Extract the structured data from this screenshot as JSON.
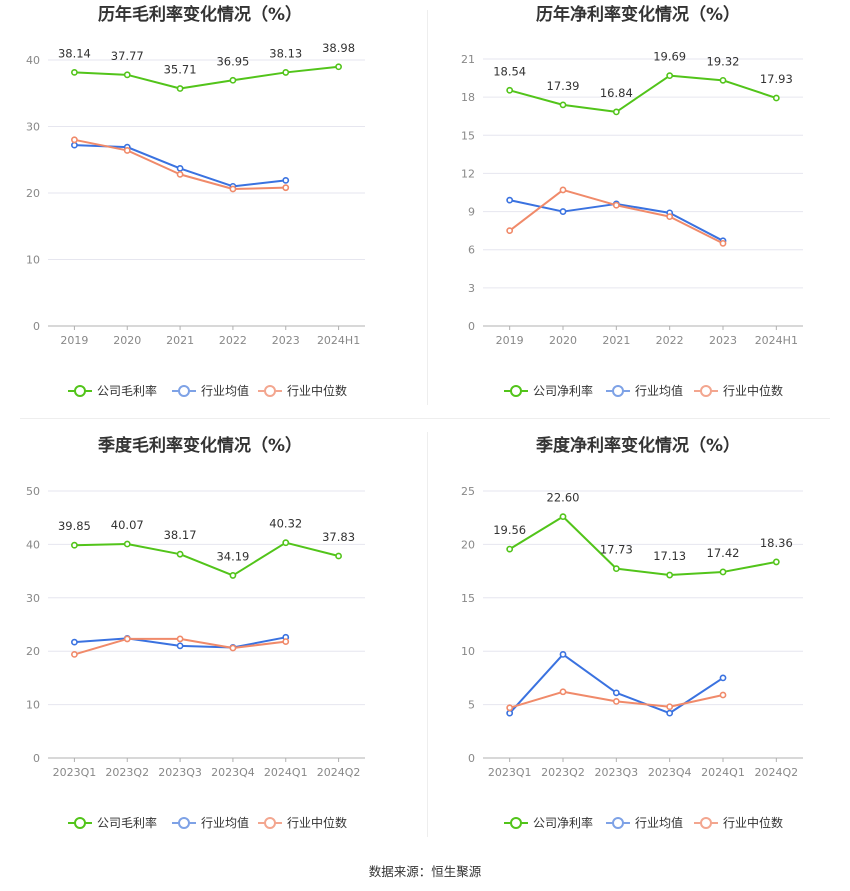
{
  "colors": {
    "company": "#52c41a",
    "industry_avg": "#3a72e0",
    "industry_median": "#f08a6a",
    "legend_avg": "#7ea2e6",
    "legend_median": "#f3a68f",
    "grid": "#e6e6ef",
    "axis": "#b0b0b0"
  },
  "footer": {
    "source": "数据来源：恒生聚源"
  },
  "chart_data": [
    {
      "type": "line",
      "title": "历年毛利率变化情况（%）",
      "categories": [
        "2019",
        "2020",
        "2021",
        "2022",
        "2023",
        "2024H1"
      ],
      "ylim": [
        0,
        40
      ],
      "yticks": [
        0,
        10,
        20,
        30,
        40
      ],
      "series": [
        {
          "name": "公司毛利率",
          "key": "company",
          "values": [
            38.14,
            37.77,
            35.71,
            36.95,
            38.13,
            38.98
          ],
          "labels": true
        },
        {
          "name": "行业均值",
          "key": "industry_avg",
          "values": [
            27.2,
            26.9,
            23.7,
            21.0,
            21.9,
            null
          ],
          "labels": false
        },
        {
          "name": "行业中位数",
          "key": "industry_median",
          "values": [
            28.0,
            26.4,
            22.8,
            20.6,
            20.8,
            null
          ],
          "labels": false
        }
      ]
    },
    {
      "type": "line",
      "title": "历年净利率变化情况（%）",
      "categories": [
        "2019",
        "2020",
        "2021",
        "2022",
        "2023",
        "2024H1"
      ],
      "ylim": [
        0,
        21
      ],
      "yticks": [
        0,
        3,
        6,
        9,
        12,
        15,
        18,
        21
      ],
      "series": [
        {
          "name": "公司净利率",
          "key": "company",
          "values": [
            18.54,
            17.39,
            16.84,
            19.69,
            19.32,
            17.93
          ],
          "labels": true
        },
        {
          "name": "行业均值",
          "key": "industry_avg",
          "values": [
            9.9,
            9.0,
            9.6,
            8.9,
            6.7,
            null
          ],
          "labels": false
        },
        {
          "name": "行业中位数",
          "key": "industry_median",
          "values": [
            7.5,
            10.7,
            9.5,
            8.6,
            6.5,
            null
          ],
          "labels": false
        }
      ]
    },
    {
      "type": "line",
      "title": "季度毛利率变化情况（%）",
      "categories": [
        "2023Q1",
        "2023Q2",
        "2023Q3",
        "2023Q4",
        "2024Q1",
        "2024Q2"
      ],
      "ylim": [
        0,
        50
      ],
      "yticks": [
        0,
        10,
        20,
        30,
        40,
        50
      ],
      "series": [
        {
          "name": "公司毛利率",
          "key": "company",
          "values": [
            39.85,
            40.07,
            38.17,
            34.19,
            40.32,
            37.83
          ],
          "labels": true
        },
        {
          "name": "行业均值",
          "key": "industry_avg",
          "values": [
            21.7,
            22.4,
            21.0,
            20.7,
            22.6,
            null
          ],
          "labels": false
        },
        {
          "name": "行业中位数",
          "key": "industry_median",
          "values": [
            19.4,
            22.3,
            22.3,
            20.6,
            21.8,
            null
          ],
          "labels": false
        }
      ]
    },
    {
      "type": "line",
      "title": "季度净利率变化情况（%）",
      "categories": [
        "2023Q1",
        "2023Q2",
        "2023Q3",
        "2023Q4",
        "2024Q1",
        "2024Q2"
      ],
      "ylim": [
        0,
        25
      ],
      "yticks": [
        0,
        5,
        10,
        15,
        20,
        25
      ],
      "series": [
        {
          "name": "公司净利率",
          "key": "company",
          "values": [
            19.56,
            22.6,
            17.73,
            17.13,
            17.42,
            18.36
          ],
          "labels": true
        },
        {
          "name": "行业均值",
          "key": "industry_avg",
          "values": [
            4.2,
            9.7,
            6.1,
            4.2,
            7.5,
            null
          ],
          "labels": false
        },
        {
          "name": "行业中位数",
          "key": "industry_median",
          "values": [
            4.7,
            6.2,
            5.3,
            4.8,
            5.9,
            null
          ],
          "labels": false
        }
      ]
    }
  ]
}
